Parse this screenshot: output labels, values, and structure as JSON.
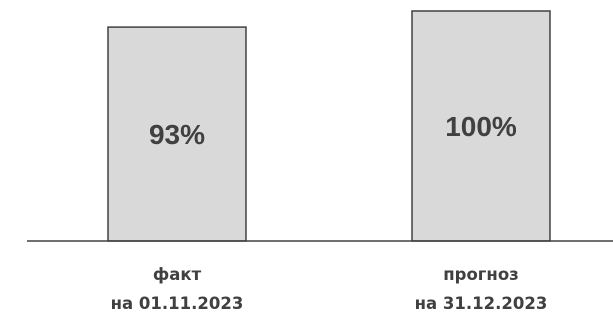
{
  "chart_data": {
    "type": "bar",
    "categories": [
      [
        "факт",
        "на 01.11.2023"
      ],
      [
        "прогноз",
        "на 31.12.2023"
      ]
    ],
    "values": [
      93,
      100
    ],
    "data_labels": [
      "93%",
      "100%"
    ],
    "title": "",
    "xlabel": "",
    "ylabel": "",
    "ylim": [
      0,
      100
    ],
    "grid": false,
    "legend": "none",
    "colors": {
      "bar_fill": "#d9d9d9",
      "bar_stroke": "#404040",
      "text": "#404040"
    }
  }
}
